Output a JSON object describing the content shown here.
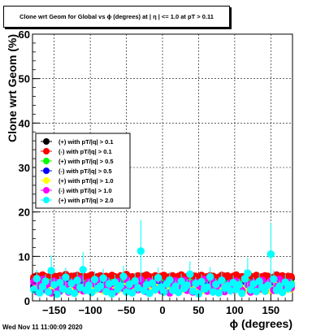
{
  "chart_data": {
    "type": "scatter",
    "title": "Clone wrt Geom for Global vs ϕ (degrees) at | η | <= 1.0 at pT > 0.11",
    "xlabel": "ϕ (degrees)",
    "ylabel": "Clone wrt Geom (%)",
    "xlim": [
      -180,
      180
    ],
    "ylim": [
      0,
      60
    ],
    "x_ticks": [
      -150,
      -100,
      -50,
      0,
      50,
      100,
      150
    ],
    "y_ticks": [
      0,
      10,
      20,
      30,
      40,
      50,
      60
    ],
    "grid": true,
    "legend_position": "left-middle",
    "n_bins": 90,
    "series": [
      {
        "name": "(+) with pT/|q| > 0.1",
        "color": "#000000",
        "values": [
          4.9,
          5.0,
          5.2,
          4.8,
          5.1,
          5.3,
          4.7,
          5.0,
          5.4,
          4.9,
          5.2,
          5.0,
          4.8,
          5.1,
          5.5,
          4.6,
          5.0,
          5.3,
          4.9,
          5.1,
          4.8,
          5.2,
          5.0,
          4.7,
          5.4,
          5.1,
          4.9,
          5.0,
          5.2,
          4.8,
          5.3,
          5.0,
          4.6,
          5.1,
          4.9,
          5.2,
          5.0,
          4.8,
          5.5,
          4.9,
          5.1,
          5.0,
          4.7,
          5.2,
          5.0,
          4.9,
          5.3,
          4.8,
          5.1,
          5.0,
          4.6,
          5.2,
          5.0,
          4.9,
          5.4,
          4.8,
          5.1,
          5.0,
          4.7,
          5.3,
          5.0,
          4.9,
          5.2,
          4.8,
          5.1,
          5.0,
          5.5,
          4.9,
          5.1,
          4.8,
          5.2,
          5.0,
          4.7,
          5.3,
          4.9,
          5.1,
          5.0,
          4.8,
          5.2,
          5.0,
          4.9,
          5.4,
          4.8,
          5.1,
          5.0,
          4.7,
          5.2,
          5.0,
          4.9,
          5.1
        ]
      },
      {
        "name": "(-) with pT/|q| > 0.1",
        "color": "#ff0000",
        "values": [
          5.3,
          5.6,
          5.1,
          5.8,
          5.4,
          5.2,
          5.7,
          5.5,
          5.0,
          5.6,
          5.3,
          5.9,
          5.2,
          5.5,
          5.4,
          5.7,
          5.1,
          5.6,
          5.3,
          5.5,
          5.8,
          5.2,
          5.4,
          5.6,
          5.0,
          5.5,
          5.3,
          5.7,
          5.4,
          5.2,
          5.6,
          5.5,
          5.9,
          5.1,
          5.4,
          5.3,
          5.6,
          5.5,
          5.2,
          5.8,
          5.4,
          5.3,
          5.6,
          5.1,
          5.5,
          5.7,
          5.3,
          5.4,
          5.6,
          5.2,
          5.5,
          5.8,
          5.3,
          5.4,
          5.1,
          5.6,
          5.5,
          5.3,
          5.7,
          5.2,
          5.4,
          5.6,
          5.5,
          5.0,
          5.3,
          5.7,
          5.4,
          5.6,
          5.2,
          5.5,
          5.8,
          5.3,
          5.4,
          5.1,
          5.6,
          5.5,
          5.3,
          5.7,
          5.2,
          5.4,
          5.6,
          5.5,
          5.0,
          5.3,
          5.8,
          5.4,
          5.6,
          5.2,
          5.5,
          5.4
        ]
      },
      {
        "name": "(+) with pT/|q| > 0.5",
        "color": "#00ff00",
        "values": [
          3.6,
          3.9,
          4.1,
          3.5,
          3.8,
          4.2,
          3.4,
          3.7,
          4.0,
          3.6,
          3.9,
          3.3,
          4.1,
          3.8,
          3.5,
          4.0,
          3.7,
          3.6,
          3.9,
          4.2,
          3.4,
          3.8,
          3.6,
          4.0,
          3.5,
          3.9,
          3.7,
          4.1,
          3.3,
          3.8,
          3.6,
          4.0,
          3.7,
          3.5,
          3.9,
          4.2,
          3.6,
          3.8,
          3.4,
          4.0,
          3.7,
          3.6,
          3.9,
          3.5,
          4.1,
          3.8,
          3.6,
          3.4,
          3.9,
          3.7,
          4.0,
          3.5,
          3.8,
          3.6,
          4.2,
          3.7,
          3.9,
          3.4,
          3.8,
          3.6,
          4.0,
          3.5,
          3.7,
          3.9,
          3.6,
          4.1,
          3.8,
          3.4,
          3.7,
          4.0,
          3.6,
          3.9,
          3.5,
          3.8,
          4.2,
          3.6,
          3.7,
          3.9,
          3.4,
          4.0,
          3.8,
          3.6,
          3.5,
          3.9,
          3.7,
          4.1,
          3.6,
          3.8,
          3.5,
          3.9
        ]
      },
      {
        "name": "(-) with pT/|q| > 0.5",
        "color": "#0000ff",
        "values": [
          3.2,
          3.5,
          3.0,
          3.7,
          3.3,
          3.1,
          3.6,
          3.4,
          2.9,
          3.5,
          3.2,
          3.8,
          3.1,
          3.4,
          3.3,
          3.6,
          3.0,
          3.5,
          3.2,
          3.4,
          3.7,
          3.1,
          3.3,
          3.5,
          2.9,
          3.4,
          3.2,
          3.6,
          3.3,
          3.1,
          3.5,
          3.4,
          3.8,
          3.0,
          3.3,
          3.2,
          3.5,
          3.4,
          3.1,
          3.7,
          3.3,
          3.2,
          3.5,
          3.0,
          3.4,
          3.6,
          3.2,
          3.3,
          3.5,
          3.1,
          3.4,
          3.7,
          3.2,
          3.3,
          3.0,
          3.5,
          3.4,
          3.2,
          3.6,
          3.1,
          3.3,
          3.5,
          3.4,
          2.9,
          3.2,
          3.6,
          3.3,
          3.5,
          3.1,
          3.4,
          3.7,
          3.2,
          3.3,
          3.0,
          3.5,
          3.4,
          3.2,
          3.6,
          3.1,
          3.3,
          3.5,
          3.4,
          2.9,
          3.2,
          3.7,
          3.3,
          3.5,
          3.1,
          3.4,
          3.3
        ]
      },
      {
        "name": "(+) with pT/|q| > 1.0",
        "color": "#ffff00",
        "values": [
          2.6,
          3.0,
          2.4,
          3.3,
          2.8,
          2.5,
          3.1,
          2.7,
          2.3,
          3.2,
          2.9,
          2.6,
          3.4,
          2.5,
          2.8,
          3.0,
          2.4,
          3.1,
          2.7,
          2.6,
          3.3,
          2.5,
          2.9,
          2.8,
          2.3,
          3.0,
          2.7,
          3.2,
          2.6,
          2.4,
          3.1,
          2.8,
          3.4,
          2.5,
          2.9,
          2.6,
          3.0,
          2.7,
          2.4,
          3.3,
          2.8,
          2.6,
          3.1,
          2.5,
          2.9,
          3.2,
          2.7,
          2.6,
          3.0,
          2.4,
          2.8,
          3.3,
          2.6,
          2.9,
          2.5,
          3.1,
          2.7,
          2.6,
          3.2,
          2.4,
          2.8,
          3.0,
          2.9,
          2.3,
          2.7,
          3.1,
          2.6,
          3.0,
          2.5,
          2.8,
          3.3,
          2.6,
          2.9,
          2.4,
          3.1,
          2.7,
          2.6,
          3.2,
          2.5,
          2.8,
          3.0,
          2.9,
          2.3,
          2.7,
          3.4,
          2.6,
          3.0,
          2.5,
          2.8,
          2.7
        ]
      },
      {
        "name": "(-) with pT/|q| > 1.0",
        "color": "#ff00ff",
        "values": [
          4.3,
          2.1,
          3.6,
          4.8,
          2.5,
          3.9,
          1.8,
          4.4,
          3.0,
          2.2,
          4.7,
          3.4,
          2.0,
          4.1,
          3.7,
          2.6,
          4.9,
          2.3,
          3.5,
          4.2,
          1.9,
          3.8,
          4.6,
          2.7,
          3.1,
          4.5,
          2.4,
          3.9,
          2.0,
          4.3,
          3.3,
          2.8,
          4.8,
          2.2,
          3.6,
          4.0,
          2.5,
          4.7,
          3.2,
          2.1,
          4.4,
          3.8,
          2.6,
          4.9,
          2.3,
          3.4,
          4.1,
          1.8,
          3.7,
          4.5,
          2.7,
          3.0,
          4.6,
          2.4,
          3.9,
          2.0,
          4.2,
          3.5,
          2.8,
          4.8,
          2.2,
          3.3,
          4.3,
          2.6,
          3.8,
          4.7,
          2.1,
          3.6,
          4.0,
          2.5,
          4.4,
          3.1,
          2.3,
          4.9,
          3.7,
          2.0,
          4.1,
          3.4,
          2.7,
          4.6,
          2.2,
          3.9,
          4.5,
          2.4,
          3.2,
          4.8,
          2.6,
          3.5,
          4.2,
          2.9
        ]
      },
      {
        "name": "(+) with pT/|q| > 2.0",
        "color": "#00ffff",
        "values": [
          2.5,
          5.0,
          1.8,
          3.2,
          4.4,
          2.0,
          6.8,
          3.6,
          1.5,
          4.1,
          2.7,
          5.3,
          2.2,
          3.9,
          1.7,
          4.6,
          3.0,
          7.0,
          2.4,
          3.5,
          1.9,
          4.8,
          2.8,
          3.3,
          5.1,
          2.1,
          3.8,
          1.6,
          4.2,
          2.6,
          3.4,
          5.5,
          2.0,
          3.7,
          1.8,
          4.5,
          2.9,
          11.2,
          2.3,
          3.6,
          1.7,
          4.0,
          2.5,
          5.2,
          3.1,
          2.0,
          3.8,
          4.7,
          2.4,
          3.3,
          1.9,
          4.4,
          2.8,
          3.5,
          6.0,
          2.2,
          3.9,
          1.6,
          4.3,
          2.7,
          3.1,
          5.4,
          2.0,
          3.7,
          1.8,
          4.6,
          2.9,
          3.4,
          2.3,
          4.1,
          2.6,
          3.6,
          1.7,
          5.0,
          6.2,
          2.5,
          3.8,
          2.1,
          4.4,
          3.0,
          2.2,
          3.5,
          10.5,
          4.9,
          2.4,
          3.3,
          1.9,
          4.2,
          2.8,
          3.6
        ],
        "errors": [
          1.0,
          2.0,
          0.8,
          1.2,
          1.6,
          0.9,
          3.5,
          1.4,
          0.7,
          1.5,
          1.1,
          2.2,
          0.9,
          1.3,
          0.8,
          1.8,
          1.2,
          4.0,
          1.0,
          1.3,
          0.9,
          1.9,
          1.1,
          1.2,
          2.1,
          0.9,
          1.4,
          0.8,
          1.7,
          1.1,
          1.3,
          2.4,
          0.9,
          1.4,
          0.8,
          1.8,
          1.2,
          7.0,
          1.0,
          1.3,
          0.8,
          1.6,
          1.0,
          2.3,
          1.2,
          0.9,
          1.5,
          1.9,
          1.0,
          1.3,
          0.9,
          1.7,
          1.1,
          1.3,
          2.9,
          0.9,
          1.5,
          0.8,
          1.7,
          1.1,
          1.2,
          2.2,
          0.9,
          1.4,
          0.8,
          1.8,
          1.2,
          1.3,
          1.0,
          1.6,
          1.1,
          1.4,
          0.8,
          2.0,
          3.5,
          1.0,
          1.5,
          0.9,
          1.7,
          1.2,
          0.9,
          1.3,
          7.0,
          2.0,
          1.0,
          1.3,
          0.9,
          1.7,
          1.1,
          1.4
        ]
      }
    ]
  },
  "footer": "Wed Nov 11 11:00:09 2020"
}
